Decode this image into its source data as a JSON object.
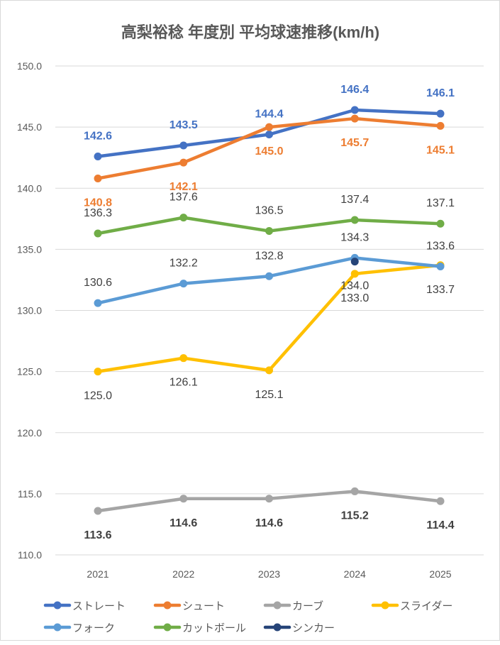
{
  "chart_data": {
    "type": "line",
    "title": "高梨裕稔 年度別 平均球速推移(km/h)",
    "xlabel": "",
    "ylabel": "",
    "x": [
      "2021",
      "2022",
      "2023",
      "2024",
      "2025"
    ],
    "ylim": [
      110,
      150
    ],
    "yticks": [
      "110.0",
      "115.0",
      "120.0",
      "125.0",
      "130.0",
      "135.0",
      "140.0",
      "145.0",
      "150.0"
    ],
    "grid": true,
    "legend_position": "bottom",
    "series": [
      {
        "name": "ストレート",
        "color": "#4472c4",
        "label_color": "#4472c4",
        "label_bold": true,
        "label_pos": "above",
        "values": [
          142.6,
          143.5,
          144.4,
          146.4,
          146.1
        ],
        "labels": [
          "142.6",
          "143.5",
          "144.4",
          "146.4",
          "146.1"
        ]
      },
      {
        "name": "シュート",
        "color": "#ed7d31",
        "label_color": "#ed7d31",
        "label_bold": true,
        "label_pos": "below",
        "values": [
          140.8,
          142.1,
          145.0,
          145.7,
          145.1
        ],
        "labels": [
          "140.8",
          "142.1",
          "145.0",
          "145.7",
          "145.1"
        ]
      },
      {
        "name": "カーブ",
        "color": "#a5a5a5",
        "label_color": "#404040",
        "label_bold": true,
        "label_pos": "below",
        "values": [
          113.6,
          114.6,
          114.6,
          115.2,
          114.4
        ],
        "labels": [
          "113.6",
          "114.6",
          "114.6",
          "115.2",
          "114.4"
        ]
      },
      {
        "name": "スライダー",
        "color": "#ffc000",
        "label_color": "#404040",
        "label_bold": false,
        "label_pos": "below",
        "values": [
          125.0,
          126.1,
          125.1,
          133.0,
          133.7
        ],
        "labels": [
          "125.0",
          "126.1",
          "125.1",
          "133.0",
          "133.7"
        ]
      },
      {
        "name": "フォーク",
        "color": "#5b9bd5",
        "label_color": "#404040",
        "label_bold": false,
        "label_pos": "above",
        "values": [
          130.6,
          132.2,
          132.8,
          134.3,
          133.6
        ],
        "labels": [
          "130.6",
          "132.2",
          "132.8",
          "134.3",
          "133.6"
        ]
      },
      {
        "name": "カットボール",
        "color": "#70ad47",
        "label_color": "#404040",
        "label_bold": false,
        "label_pos": "above",
        "values": [
          136.3,
          137.6,
          136.5,
          137.4,
          137.1
        ],
        "labels": [
          "136.3",
          "137.6",
          "136.5",
          "137.4",
          "137.1"
        ]
      },
      {
        "name": "シンカー",
        "color": "#264478",
        "label_color": "#404040",
        "label_bold": false,
        "label_pos": "below",
        "values": [
          null,
          null,
          null,
          134.0,
          null
        ],
        "labels": [
          null,
          null,
          null,
          "134.0",
          null
        ]
      }
    ]
  }
}
